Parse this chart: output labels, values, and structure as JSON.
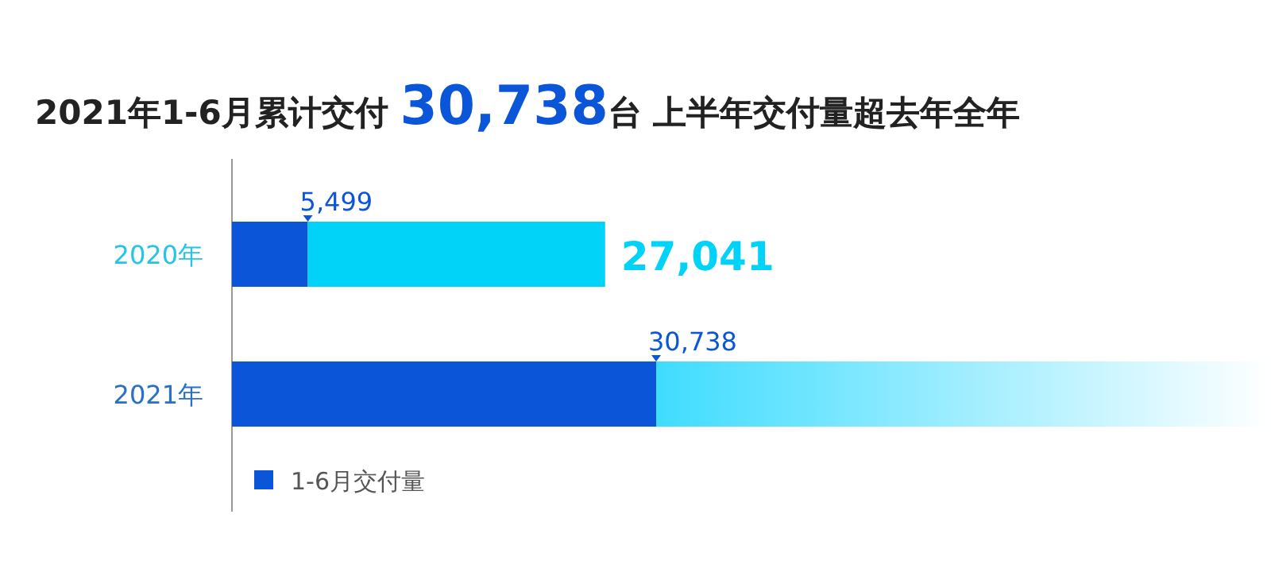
{
  "chart_data": {
    "type": "bar",
    "orientation": "horizontal",
    "stacked": true,
    "title": "2021年1-6月累计交付 30,738台  上半年交付量超去年全年",
    "categories": [
      "2020年",
      "2021年"
    ],
    "series": [
      {
        "name": "1-6月交付量",
        "color": "#0a55d8",
        "values": [
          5499,
          30738
        ],
        "value_labels": [
          "5,499",
          "30,738"
        ]
      },
      {
        "color": "#00d2f8",
        "values": [
          21542,
          null
        ]
      }
    ],
    "totals": [
      "27,041",
      null
    ],
    "legend": "bottom left"
  }
}
